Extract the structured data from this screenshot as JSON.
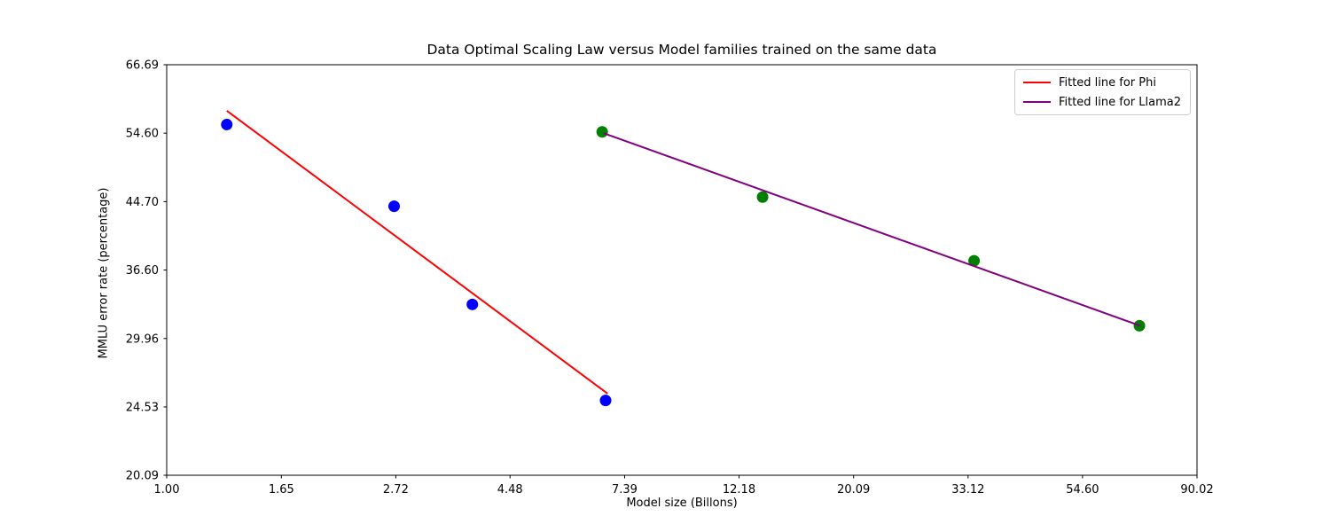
{
  "figure": {
    "background": "#ffffff",
    "frame_color": "#000000"
  },
  "chart_data": {
    "type": "scatter",
    "title": "Data Optimal Scaling Law versus Model families trained on the same data",
    "xlabel": "Model size (Billons)",
    "ylabel": "MMLU error rate (percentage)",
    "x_scale": "log",
    "y_scale": "log",
    "xlim": [
      1.0,
      90.02
    ],
    "ylim": [
      20.09,
      66.69
    ],
    "grid": false,
    "x_ticks": [
      1.0,
      1.65,
      2.72,
      4.48,
      7.39,
      12.18,
      20.09,
      33.12,
      54.6,
      90.02
    ],
    "x_tick_labels": [
      "1.00",
      "1.65",
      "2.72",
      "4.48",
      "7.39",
      "12.18",
      "20.09",
      "33.12",
      "54.60",
      "90.02"
    ],
    "y_ticks": [
      20.09,
      24.53,
      29.96,
      36.6,
      44.7,
      54.6,
      66.69
    ],
    "y_tick_labels": [
      "20.09",
      "24.53",
      "29.96",
      "36.60",
      "44.70",
      "54.60",
      "66.69"
    ],
    "series": [
      {
        "name": "phi-data-points",
        "kind": "scatter",
        "color": "#0000ff",
        "marker_radius": 6.5,
        "points": [
          [
            1.3,
            56.0
          ],
          [
            2.7,
            44.1
          ],
          [
            3.8,
            33.1
          ],
          [
            6.8,
            25.0
          ]
        ]
      },
      {
        "name": "llama2-data-points",
        "kind": "scatter",
        "color": "#008000",
        "marker_radius": 6.5,
        "points": [
          [
            6.7,
            54.8
          ],
          [
            13.5,
            45.3
          ],
          [
            34.0,
            37.6
          ],
          [
            70.0,
            31.1
          ]
        ]
      },
      {
        "name": "phi-fitted-line",
        "kind": "line",
        "color": "#ff0000",
        "stroke_width": 2,
        "points": [
          [
            1.3,
            58.3
          ],
          [
            6.86,
            25.5
          ]
        ]
      },
      {
        "name": "llama2-fitted-line",
        "kind": "line",
        "color": "#800080",
        "stroke_width": 2,
        "points": [
          [
            6.74,
            54.6
          ],
          [
            70.2,
            31.1
          ]
        ]
      }
    ],
    "legend": {
      "position": "upper right",
      "entries": [
        {
          "label": "Fitted line for Phi",
          "color": "#ff0000"
        },
        {
          "label": "Fitted line for Llama2",
          "color": "#800080"
        }
      ]
    }
  }
}
